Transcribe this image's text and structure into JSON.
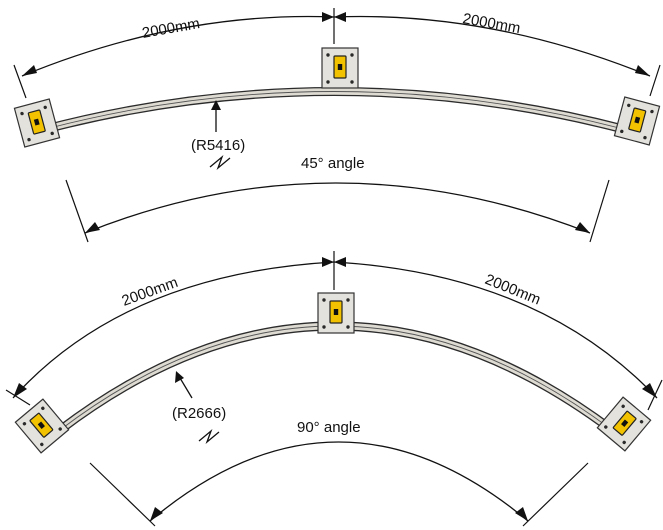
{
  "diagrams": [
    {
      "id": "curve-45",
      "left_arc_length": "2000mm",
      "right_arc_length": "2000mm",
      "radius_label": "(R5416)",
      "angle_label": "45° angle"
    },
    {
      "id": "curve-90",
      "left_arc_length": "2000mm",
      "right_arc_length": "2000mm",
      "radius_label": "(R2666)",
      "angle_label": "90° angle"
    }
  ],
  "colors": {
    "bracket": "#f2c200",
    "plate": "#e4e2dc",
    "rail": "#dedbd3",
    "line": "#111111"
  }
}
